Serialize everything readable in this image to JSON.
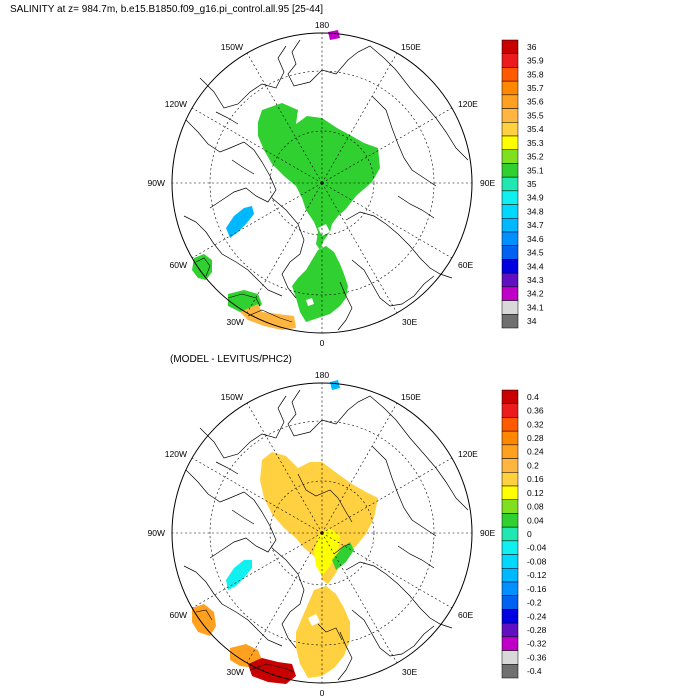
{
  "panels": [
    {
      "title": "SALINITY at z= 984.7m, b.e15.B1850.f09_g16.pi_control.all.95 [25-44]",
      "longitude_labels": [
        "180",
        "150E",
        "120E",
        "90E",
        "60E",
        "30E",
        "0",
        "30W",
        "60W",
        "90W",
        "120W",
        "150W"
      ],
      "colorbar_labels": [
        "36",
        "35.9",
        "35.8",
        "35.7",
        "35.6",
        "35.5",
        "35.4",
        "35.3",
        "35.2",
        "35.1",
        "35",
        "34.9",
        "34.8",
        "34.7",
        "34.6",
        "34.5",
        "34.4",
        "34.3",
        "34.2",
        "34.1",
        "34"
      ],
      "colorbar_colors": [
        "#c80000",
        "#ec1c1c",
        "#ff5a00",
        "#ff8800",
        "#ffa020",
        "#ffb640",
        "#ffd040",
        "#ffff00",
        "#80e020",
        "#30d030",
        "#20e8b0",
        "#10f0f0",
        "#00d8ff",
        "#00b8ff",
        "#0090ff",
        "#0060f0",
        "#0000e0",
        "#6010c0",
        "#c000c8",
        "#d8d8d8",
        "#707070"
      ]
    },
    {
      "title": "(MODEL - LEVITUS/PHC2)",
      "longitude_labels": [
        "180",
        "150E",
        "120E",
        "90E",
        "60E",
        "30E",
        "0",
        "30W",
        "60W",
        "90W",
        "120W",
        "150W"
      ],
      "colorbar_labels": [
        "0.4",
        "0.36",
        "0.32",
        "0.28",
        "0.24",
        "0.2",
        "0.16",
        "0.12",
        "0.08",
        "0.04",
        "0",
        "-0.04",
        "-0.08",
        "-0.12",
        "-0.16",
        "-0.2",
        "-0.24",
        "-0.28",
        "-0.32",
        "-0.36",
        "-0.4"
      ],
      "colorbar_colors": [
        "#c80000",
        "#ec1c1c",
        "#ff5a00",
        "#ff8800",
        "#ffa020",
        "#ffb640",
        "#ffd040",
        "#ffff00",
        "#80e020",
        "#30d030",
        "#20e8b0",
        "#10f0f0",
        "#00d8ff",
        "#00b8ff",
        "#0090ff",
        "#0060f0",
        "#0000e0",
        "#6010c0",
        "#c000c8",
        "#d8d8d8",
        "#707070"
      ]
    }
  ]
}
